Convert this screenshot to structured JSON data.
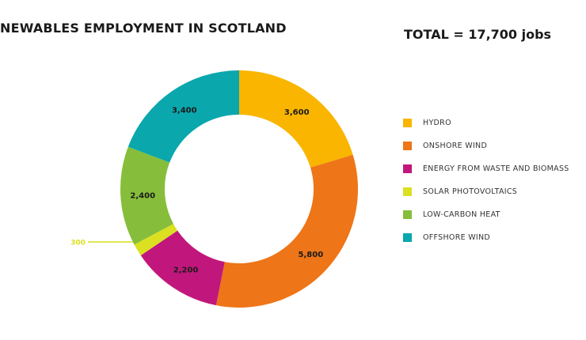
{
  "header": {
    "title": "NEWABLES EMPLOYMENT IN SCOTLAND",
    "total": "TOTAL = 17,700 jobs"
  },
  "chart_data": {
    "type": "pie",
    "title": "NEWABLES EMPLOYMENT IN SCOTLAND",
    "subtitle": "TOTAL = 17,700 jobs",
    "donut": true,
    "legend_position": "right",
    "categories": [
      "HYDRO",
      "ONSHORE WIND",
      "ENERGY FROM WASTE AND BIOMASS",
      "SOLAR PHOTOVOLTAICS",
      "LOW-CARBON HEAT",
      "OFFSHORE WIND"
    ],
    "values": [
      3600,
      5800,
      2200,
      300,
      2400,
      3400
    ],
    "labels": [
      "3,600",
      "5,800",
      "2,200",
      "300",
      "2,400",
      "3,400"
    ],
    "colors": [
      "#f9b500",
      "#ee7518",
      "#c1177c",
      "#dbe021",
      "#86be3b",
      "#0aa7ad"
    ],
    "callout_color": "#dbe021",
    "callout_index": 3
  }
}
